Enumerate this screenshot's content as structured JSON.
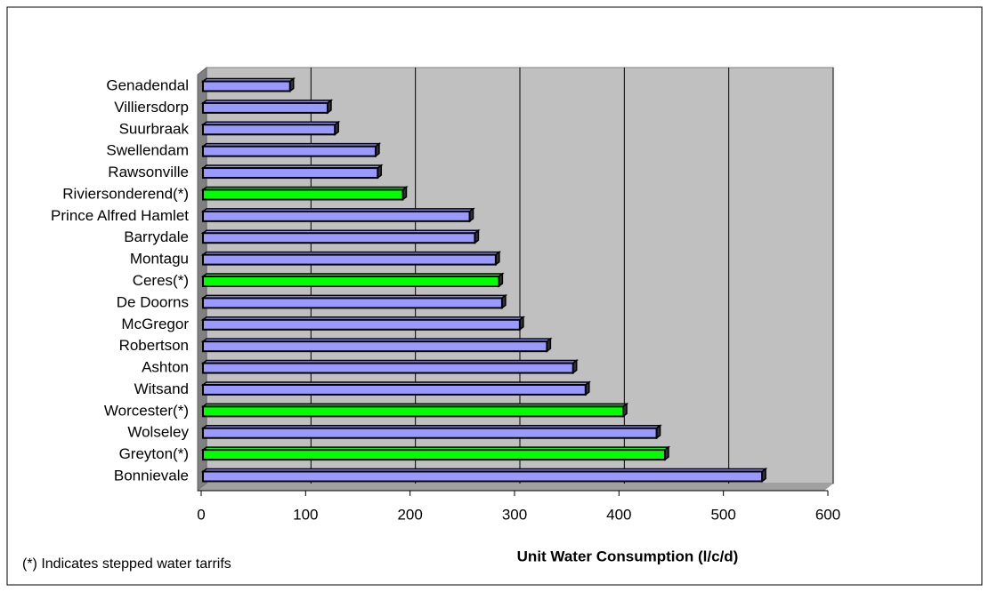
{
  "chart_data": {
    "type": "bar",
    "orientation": "horizontal",
    "x_label": "Unit Water Consumption (l/c/d)",
    "footnote": "(*) Indicates stepped water tarrifs",
    "categories": [
      "Genadendal",
      "Villiersdorp",
      "Suurbraak",
      "Swellendam",
      "Rawsonville",
      "Riviersonderend(*)",
      "Prince Alfred Hamlet",
      "Barrydale",
      "Montagu",
      "Ceres(*)",
      "De Doorns",
      "McGregor",
      "Robertson",
      "Ashton",
      "Witsand",
      "Worcester(*)",
      "Wolseley",
      "Greyton(*)",
      "Bonnievale"
    ],
    "values": [
      85,
      121,
      128,
      167,
      169,
      193,
      257,
      262,
      282,
      285,
      288,
      305,
      331,
      356,
      368,
      404,
      436,
      444,
      537
    ],
    "colors": [
      "#9999ff",
      "#9999ff",
      "#9999ff",
      "#9999ff",
      "#9999ff",
      "#00ff00",
      "#9999ff",
      "#9999ff",
      "#9999ff",
      "#00ff00",
      "#9999ff",
      "#9999ff",
      "#9999ff",
      "#9999ff",
      "#9999ff",
      "#00ff00",
      "#9999ff",
      "#00ff00",
      "#9999ff"
    ],
    "xlim": [
      0,
      600
    ],
    "xticks": [
      0,
      100,
      200,
      300,
      400,
      500,
      600
    ],
    "grid": true
  }
}
